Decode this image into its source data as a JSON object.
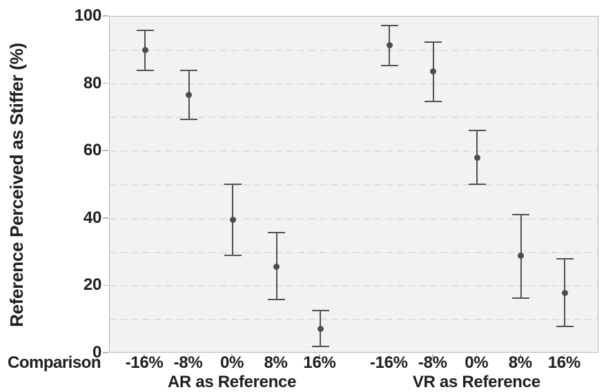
{
  "chart_data": {
    "type": "scatter",
    "subtype": "point-with-error-bars",
    "title": "",
    "ylabel": "Reference Perceived as Stiffer (%)",
    "xlabel_row_label": "Comparison",
    "ylim": [
      0,
      100
    ],
    "yticks": [
      0,
      20,
      40,
      60,
      80,
      100
    ],
    "gridline_step": 10,
    "grid_style": "dashed horizontal, light gray, every 10 units",
    "legend_position": "none",
    "categories": [
      "-16%",
      "-8%",
      "0%",
      "8%",
      "16%"
    ],
    "groups": [
      {
        "label": "AR as Reference",
        "points": [
          {
            "x": "-16%",
            "mean": 90.0,
            "lo": 84.0,
            "hi": 96.0
          },
          {
            "x": "-8%",
            "mean": 76.7,
            "lo": 69.5,
            "hi": 84.1
          },
          {
            "x": "0%",
            "mean": 39.7,
            "lo": 29.0,
            "hi": 50.3
          },
          {
            "x": "8%",
            "mean": 25.8,
            "lo": 16.0,
            "hi": 35.8
          },
          {
            "x": "16%",
            "mean": 7.3,
            "lo": 2.0,
            "hi": 12.8
          }
        ]
      },
      {
        "label": "VR as Reference",
        "points": [
          {
            "x": "-16%",
            "mean": 91.4,
            "lo": 85.4,
            "hi": 97.4
          },
          {
            "x": "-8%",
            "mean": 83.7,
            "lo": 74.8,
            "hi": 92.5
          },
          {
            "x": "0%",
            "mean": 58.0,
            "lo": 50.2,
            "hi": 66.1
          },
          {
            "x": "8%",
            "mean": 29.0,
            "lo": 16.4,
            "hi": 41.2
          },
          {
            "x": "16%",
            "mean": 18.0,
            "lo": 7.9,
            "hi": 28.1
          }
        ]
      }
    ],
    "colors": {
      "point": "#4d4d4d",
      "error_bar": "#515151",
      "plot_background": "#f2f2f0",
      "gridline": "#dfdfdd",
      "spine": "#b5b5b2",
      "text": "#1f1f1f",
      "page_background": "#ffffff"
    }
  }
}
